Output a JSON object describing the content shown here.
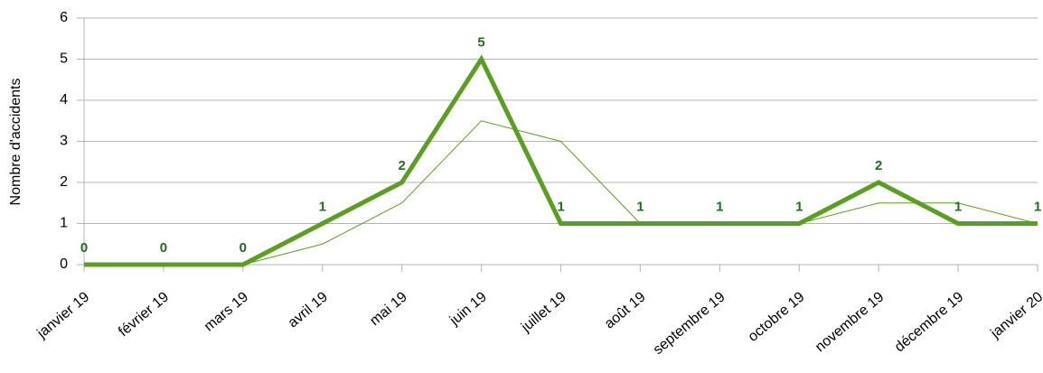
{
  "chart_data": {
    "type": "line",
    "y_label": "Nombre d'accidents",
    "categories": [
      "janvier 19",
      "février 19",
      "mars 19",
      "avril 19",
      "mai 19",
      "juin 19",
      "juillet 19",
      "août 19",
      "septembre 19",
      "octobre 19",
      "novembre 19",
      "décembre 19",
      "janvier 20"
    ],
    "series": [
      {
        "color": "#5a9e22",
        "width": 5,
        "labels": true,
        "values": [
          0,
          0,
          0,
          1,
          2,
          5,
          1,
          1,
          1,
          1,
          2,
          1,
          1
        ]
      },
      {
        "color": "#5a9e22",
        "width": 1,
        "labels": false,
        "values": [
          null,
          0,
          0,
          0.5,
          1.5,
          3.5,
          3,
          1,
          1,
          1,
          1.5,
          1.5,
          1
        ]
      }
    ],
    "ylim": [
      0,
      6
    ],
    "yticks": [
      0,
      1,
      2,
      3,
      4,
      5,
      6
    ],
    "grid": true
  }
}
